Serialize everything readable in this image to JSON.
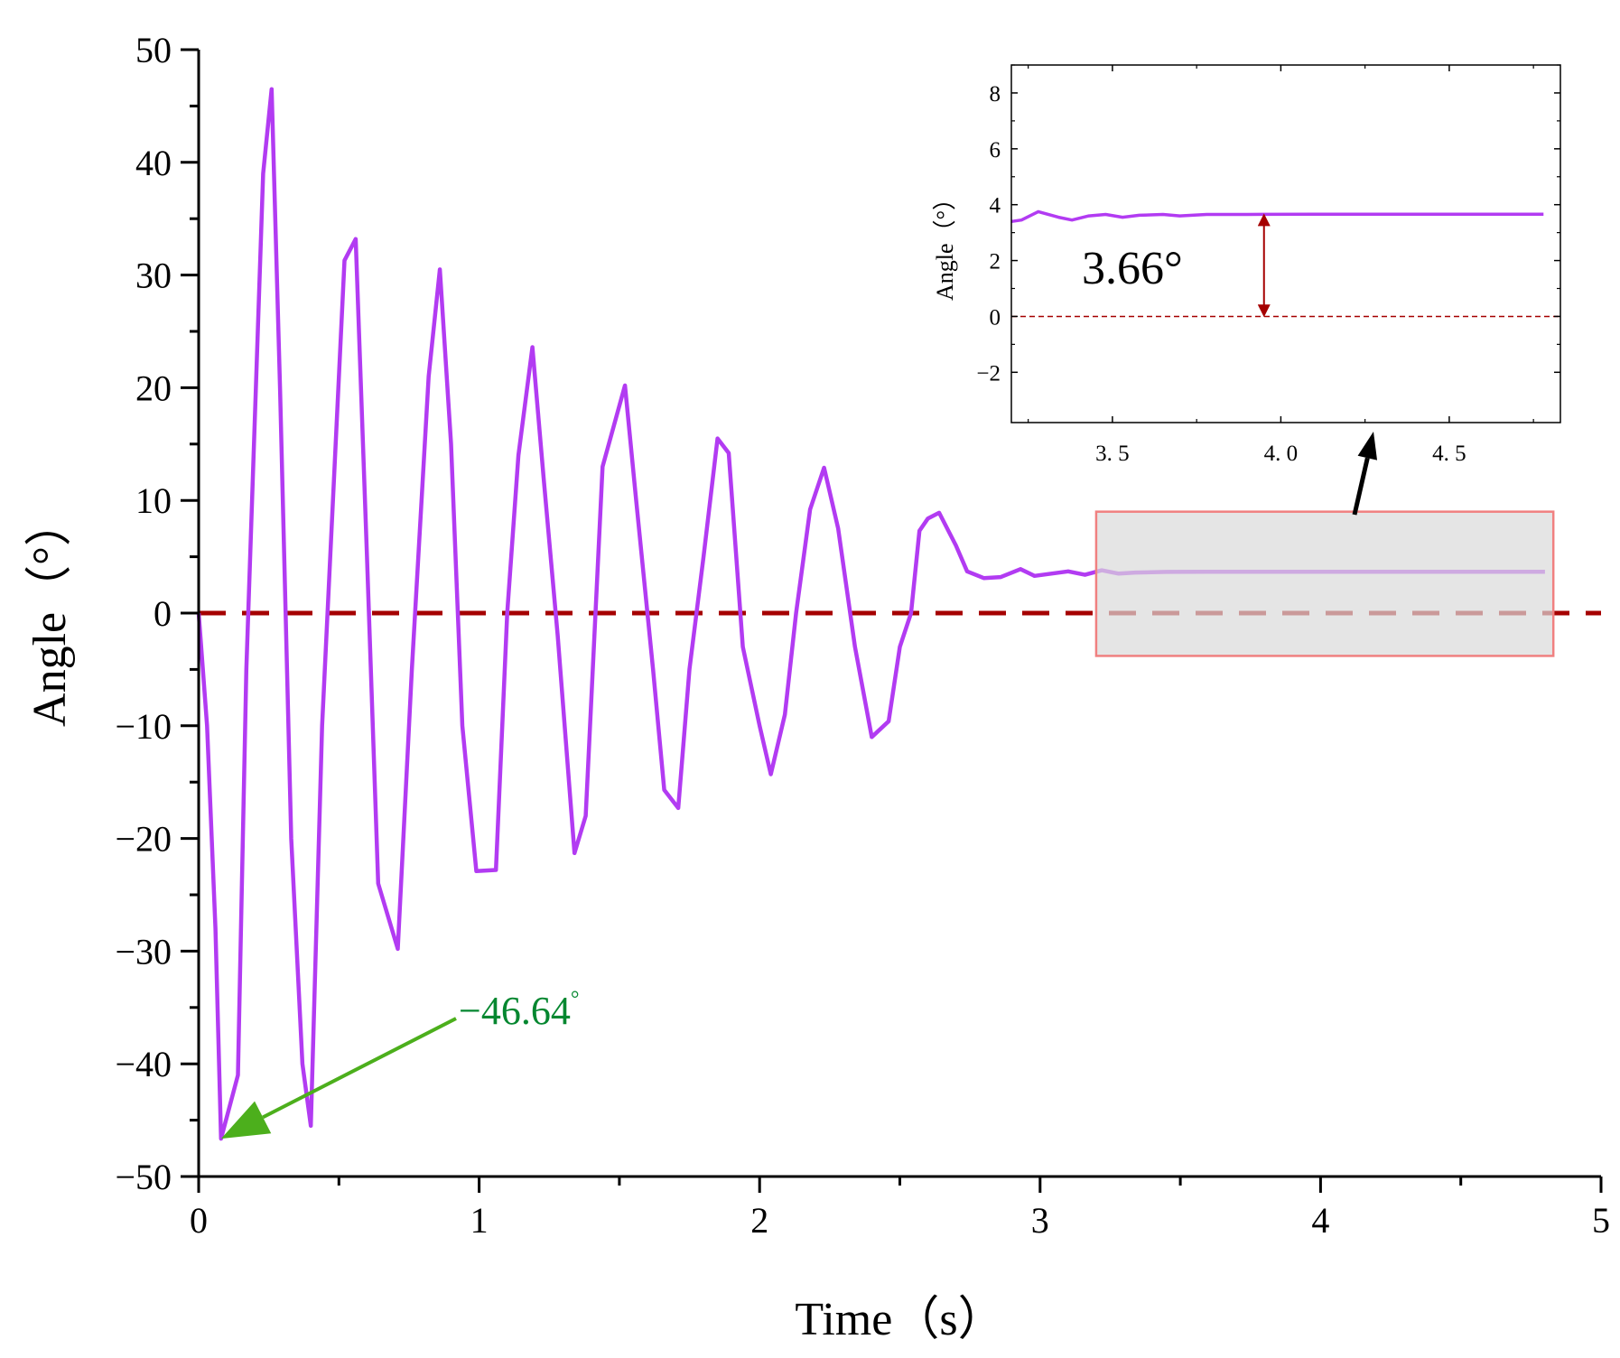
{
  "chart_data": [
    {
      "id": "main",
      "type": "line",
      "title": "",
      "xlabel": "Time（s）",
      "ylabel": "Angle（°）",
      "xlim": [
        0,
        5
      ],
      "ylim": [
        -50,
        50
      ],
      "xticks": [
        "0",
        "1",
        "2",
        "3",
        "4",
        "5"
      ],
      "yticks": [
        "50",
        "40",
        "30",
        "20",
        "10",
        "0",
        "−10",
        "−20",
        "−30",
        "−40",
        "−50"
      ],
      "series": [
        {
          "name": "Angle",
          "color": "#B23BF2",
          "points": [
            [
              0.0,
              0.0
            ],
            [
              0.03,
              -10
            ],
            [
              0.06,
              -28
            ],
            [
              0.08,
              -46.64
            ],
            [
              0.14,
              -41
            ],
            [
              0.17,
              -5
            ],
            [
              0.23,
              39
            ],
            [
              0.26,
              46.5
            ],
            [
              0.29,
              20
            ],
            [
              0.33,
              -20
            ],
            [
              0.37,
              -40
            ],
            [
              0.4,
              -45.5
            ],
            [
              0.44,
              -10
            ],
            [
              0.52,
              31.3
            ],
            [
              0.56,
              33.2
            ],
            [
              0.6,
              5
            ],
            [
              0.64,
              -24
            ],
            [
              0.71,
              -29.8
            ],
            [
              0.76,
              -5
            ],
            [
              0.82,
              21
            ],
            [
              0.86,
              30.5
            ],
            [
              0.9,
              15
            ],
            [
              0.94,
              -10
            ],
            [
              0.99,
              -22.9
            ],
            [
              1.06,
              -22.8
            ],
            [
              1.1,
              0
            ],
            [
              1.14,
              14
            ],
            [
              1.19,
              23.6
            ],
            [
              1.23,
              12
            ],
            [
              1.28,
              -2
            ],
            [
              1.34,
              -21.3
            ],
            [
              1.38,
              -18
            ],
            [
              1.44,
              13
            ],
            [
              1.52,
              20.2
            ],
            [
              1.56,
              10
            ],
            [
              1.62,
              -5
            ],
            [
              1.66,
              -15.7
            ],
            [
              1.71,
              -17.3
            ],
            [
              1.75,
              -5
            ],
            [
              1.8,
              5
            ],
            [
              1.85,
              15.5
            ],
            [
              1.89,
              14.2
            ],
            [
              1.94,
              -3
            ],
            [
              2.0,
              -10
            ],
            [
              2.04,
              -14.3
            ],
            [
              2.09,
              -9
            ],
            [
              2.13,
              0
            ],
            [
              2.18,
              9.2
            ],
            [
              2.23,
              12.9
            ],
            [
              2.28,
              7.5
            ],
            [
              2.34,
              -3
            ],
            [
              2.4,
              -11
            ],
            [
              2.46,
              -9.6
            ],
            [
              2.5,
              -3
            ],
            [
              2.54,
              0
            ],
            [
              2.57,
              7.3
            ],
            [
              2.6,
              8.4
            ],
            [
              2.64,
              8.9
            ],
            [
              2.7,
              6
            ],
            [
              2.74,
              3.7
            ],
            [
              2.8,
              3.1
            ],
            [
              2.86,
              3.2
            ],
            [
              2.93,
              3.9
            ],
            [
              2.98,
              3.3
            ],
            [
              3.04,
              3.5
            ],
            [
              3.1,
              3.7
            ],
            [
              3.16,
              3.4
            ],
            [
              3.22,
              3.8
            ],
            [
              3.28,
              3.5
            ],
            [
              3.34,
              3.6
            ],
            [
              3.45,
              3.65
            ],
            [
              3.6,
              3.66
            ],
            [
              4.0,
              3.66
            ],
            [
              4.4,
              3.66
            ],
            [
              4.8,
              3.66
            ]
          ]
        },
        {
          "name": "Zero reference",
          "color": "#A50000",
          "style": "dashed",
          "points": [
            [
              0,
              0
            ],
            [
              5,
              0
            ]
          ]
        }
      ],
      "highlight_region": {
        "x": [
          3.2,
          4.83
        ],
        "y": [
          -3.8,
          9.0
        ],
        "color": "#DADADA",
        "stroke": "#F08080"
      },
      "annotations": [
        {
          "text": "−46.64",
          "superscript": "°",
          "color": "#058730",
          "arrow_color": "#4CAF1C",
          "target": [
            0.08,
            -46.64
          ]
        }
      ]
    },
    {
      "id": "inset",
      "type": "line",
      "title": "",
      "xlabel": "",
      "ylabel": "Angle（°）",
      "xlim": [
        3.2,
        4.83
      ],
      "ylim": [
        -3.8,
        9.0
      ],
      "xtick_values": [
        3.5,
        4.0,
        4.5
      ],
      "xticks": [
        "3. 5",
        "4. 0",
        "4. 5"
      ],
      "ytick_values": [
        8,
        6,
        4,
        2,
        0,
        -2
      ],
      "yticks": [
        "8",
        "6",
        "4",
        "2",
        "0",
        "−2"
      ],
      "series": [
        {
          "name": "Angle (zoom)",
          "color": "#B23BF2",
          "points": [
            [
              3.2,
              3.4
            ],
            [
              3.23,
              3.45
            ],
            [
              3.28,
              3.75
            ],
            [
              3.34,
              3.55
            ],
            [
              3.38,
              3.45
            ],
            [
              3.43,
              3.6
            ],
            [
              3.48,
              3.65
            ],
            [
              3.53,
              3.55
            ],
            [
              3.58,
              3.62
            ],
            [
              3.65,
              3.65
            ],
            [
              3.7,
              3.6
            ],
            [
              3.78,
              3.65
            ],
            [
              3.9,
              3.65
            ],
            [
              4.1,
              3.66
            ],
            [
              4.4,
              3.66
            ],
            [
              4.78,
              3.66
            ]
          ]
        },
        {
          "name": "Zero reference",
          "color": "#A50000",
          "style": "dashed",
          "points": [
            [
              3.2,
              0
            ],
            [
              4.83,
              0
            ]
          ]
        }
      ],
      "annotations": [
        {
          "text": "3.66°",
          "color": "#A50000",
          "arrow_x": 3.95,
          "from": 0,
          "to": 3.66
        }
      ]
    }
  ]
}
